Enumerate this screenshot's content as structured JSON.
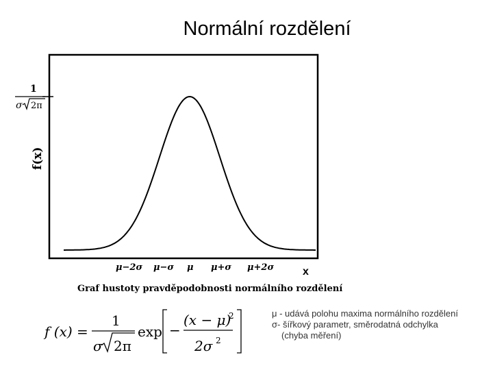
{
  "slide": {
    "title": "Normální rozdělení"
  },
  "diagram": {
    "y_axis_label": "f(x)",
    "peak_label": {
      "numerator": "1",
      "denominator_sigma": "σ",
      "denominator_root": "2π"
    },
    "x_axis_label": "x",
    "x_ticks": [
      "μ−2σ",
      "μ−σ",
      "μ",
      "μ+σ",
      "μ+2σ"
    ],
    "caption": "Graf hustoty pravděpodobnosti normálního rozdělení"
  },
  "formula": {
    "lhs": "f (x) =",
    "frac_numerator": "1",
    "frac_denominator_sigma": "σ",
    "frac_denominator_root": "2π",
    "exp": "exp",
    "inner_numerator": "(x − μ)",
    "inner_numerator_power": "2",
    "minus": "−",
    "inner_denominator": "2σ",
    "inner_denominator_power": "2"
  },
  "notes": {
    "mu_line": "μ - udává polohu maxima normálního rozdělení",
    "sigma_line": "σ- šířkový parametr, směrodatná odchylka",
    "sigma_line_cont": "(chyba měření)"
  }
}
